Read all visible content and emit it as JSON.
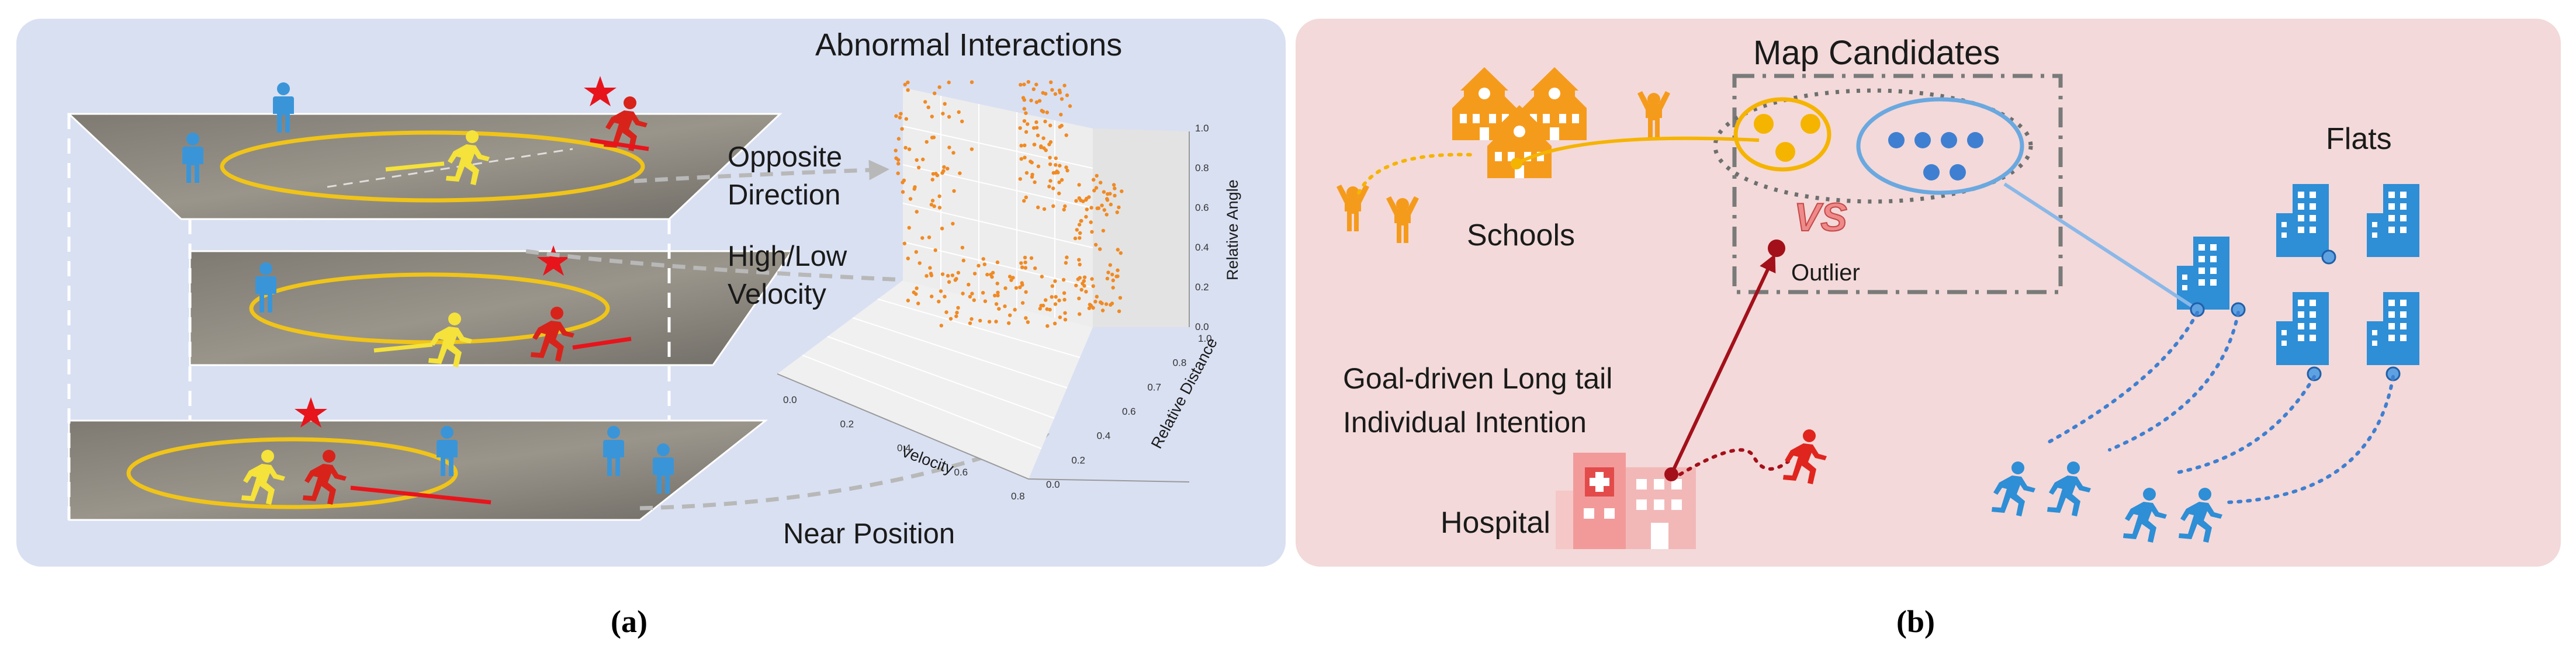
{
  "panel_a": {
    "caption": "(a)",
    "title": "Abnormal Interactions",
    "label_opposite_1": "Opposite",
    "label_opposite_2": "Direction",
    "label_velocity_1": "High/Low",
    "label_velocity_2": "Velocity",
    "label_near": "Near Position",
    "plot": {
      "xlabel": "Velocity",
      "ylabel": "Relative Distance",
      "zlabel": "Relative Angle",
      "x_ticks": [
        "0.0",
        "0.2",
        "0.4",
        "0.6",
        "0.8"
      ],
      "y_ticks": [
        "0.0",
        "0.2",
        "0.4",
        "0.6",
        "0.7",
        "0.8",
        "1.0"
      ],
      "z_ticks": [
        "0.0",
        "0.2",
        "0.4",
        "0.6",
        "0.8",
        "1.0"
      ],
      "point_color": "#f08a24"
    }
  },
  "panel_b": {
    "caption": "(b)",
    "title": "Map Candidates",
    "label_schools": "Schools",
    "label_flats": "Flats",
    "label_vs": "VS",
    "label_outlier": "Outlier",
    "label_goal_1": "Goal-driven Long tail",
    "label_goal_2": "Individual Intention",
    "label_hospital": "Hospital"
  },
  "colors": {
    "panel_a_bg": "#d9e0f2",
    "panel_b_bg": "#f3d9d9",
    "orange": "#f39a1e",
    "blue": "#3a95d8",
    "red": "#d8231b",
    "yellow": "#f5e23a"
  }
}
